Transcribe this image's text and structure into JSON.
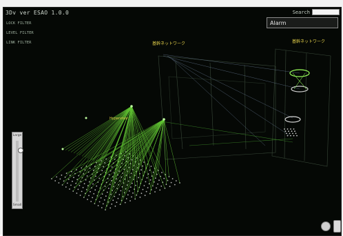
{
  "app": {
    "title": "3Dv ver ESAO 1.0.0"
  },
  "filters": [
    "LOCK FILTER",
    "LEVEL FILTER",
    "LINK FILTER"
  ],
  "search": {
    "label": "Search",
    "value": ""
  },
  "alarm": {
    "label": "Alarm"
  },
  "network_labels": [
    "基幹ネットワーク",
    "基幹ネットワーク",
    "Hypervisor"
  ],
  "slider": {
    "top_label": "Large",
    "bottom_label": "Small",
    "level": 0.12
  },
  "colors": {
    "accent": "#7cff4a",
    "node": "#b8b8b8",
    "label": "#e6d24a",
    "background": "#050805"
  },
  "icons": [
    "rotate-icon",
    "panel-icon"
  ]
}
